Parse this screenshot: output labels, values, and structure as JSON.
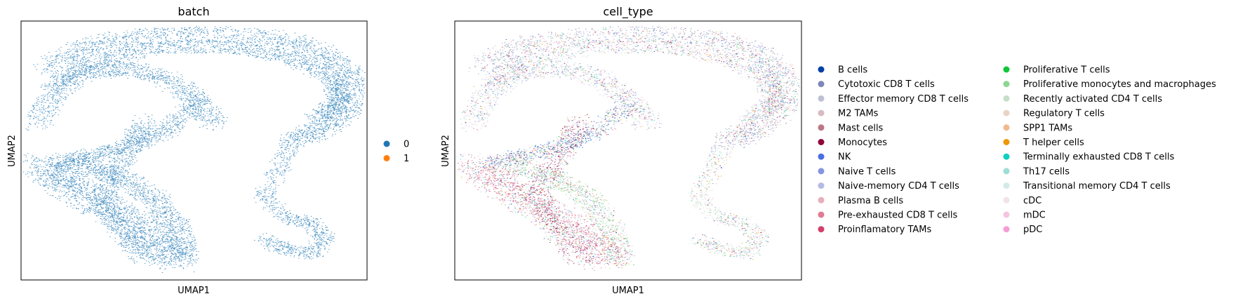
{
  "chart_data": [
    {
      "type": "scatter",
      "title": "batch",
      "xlabel": "UMAP1",
      "ylabel": "UMAP2",
      "grid": false,
      "ticks": false,
      "legend_position": "right",
      "legend": [
        {
          "label": "0",
          "color": "#1f77b4"
        },
        {
          "label": "1",
          "color": "#ff7f0e"
        }
      ],
      "dominant_color": "#1f77b4"
    },
    {
      "type": "scatter",
      "title": "cell_type",
      "xlabel": "UMAP1",
      "ylabel": "UMAP2",
      "grid": false,
      "ticks": false,
      "legend_position": "right",
      "legend_columns": 2,
      "legend": [
        {
          "label": "B cells",
          "color": "#023fa5"
        },
        {
          "label": "Cytotoxic CD8 T cells",
          "color": "#7d87b9"
        },
        {
          "label": "Effector memory CD8 T cells",
          "color": "#bec1d4"
        },
        {
          "label": "M2 TAMs",
          "color": "#d6bcc0"
        },
        {
          "label": "Mast cells",
          "color": "#bb7784"
        },
        {
          "label": "Monocytes",
          "color": "#8e063b"
        },
        {
          "label": "NK",
          "color": "#4a6fe3"
        },
        {
          "label": "Naive T cells",
          "color": "#8595e1"
        },
        {
          "label": "Naive-memory CD4 T cells",
          "color": "#b5bbe3"
        },
        {
          "label": "Plasma B cells",
          "color": "#e6afb9"
        },
        {
          "label": "Pre-exhausted CD8 T cells",
          "color": "#e07b91"
        },
        {
          "label": "Proinflamatory TAMs",
          "color": "#d33f6a"
        },
        {
          "label": "Proliferative T cells",
          "color": "#11c638"
        },
        {
          "label": "Proliferative monocytes and macrophages",
          "color": "#8dd593"
        },
        {
          "label": "Recently activated CD4 T cells",
          "color": "#c6dec7"
        },
        {
          "label": "Regulatory T cells",
          "color": "#ead3c6"
        },
        {
          "label": "SPP1 TAMs",
          "color": "#f0b98d"
        },
        {
          "label": "T helper cells",
          "color": "#ef9708"
        },
        {
          "label": "Terminally exhausted CD8 T cells",
          "color": "#0fcfc0"
        },
        {
          "label": "Th17 cells",
          "color": "#9cded6"
        },
        {
          "label": "Transitional memory CD4 T cells",
          "color": "#d5eae7"
        },
        {
          "label": "cDC",
          "color": "#f3e1eb"
        },
        {
          "label": "mDC",
          "color": "#f6c4e1"
        },
        {
          "label": "pDC",
          "color": "#f79cd4"
        }
      ]
    }
  ]
}
